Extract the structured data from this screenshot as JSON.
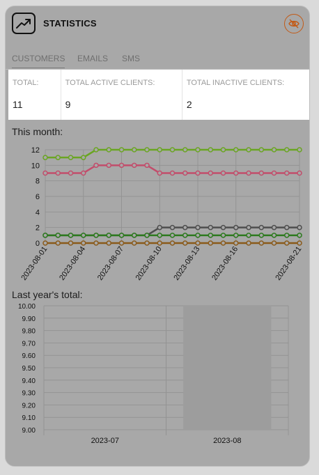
{
  "header": {
    "title": "STATISTICS",
    "app_icon": "trend-up-icon",
    "hide_icon": "eye-off-icon"
  },
  "tabs": [
    {
      "label": "CUSTOMERS",
      "active": true
    },
    {
      "label": "EMAILS",
      "active": false
    },
    {
      "label": "SMS",
      "active": false
    }
  ],
  "summary": [
    {
      "label": "TOTAL:",
      "value": "11"
    },
    {
      "label": "TOTAL ACTIVE CLIENTS:",
      "value": "9"
    },
    {
      "label": "TOTAL INACTIVE CLIENTS:",
      "value": "2"
    }
  ],
  "month_label": "This month:",
  "year_label": "Last year's total:",
  "colors": {
    "accent": "#c25a16",
    "card_bg": "#a8a8a8"
  },
  "chart_data": [
    {
      "type": "line",
      "x": [
        "2023-08-01",
        "2023-08-02",
        "2023-08-03",
        "2023-08-04",
        "2023-08-05",
        "2023-08-06",
        "2023-08-07",
        "2023-08-08",
        "2023-08-09",
        "2023-08-10",
        "2023-08-11",
        "2023-08-12",
        "2023-08-13",
        "2023-08-14",
        "2023-08-15",
        "2023-08-16",
        "2023-08-17",
        "2023-08-18",
        "2023-08-19",
        "2023-08-20",
        "2023-08-21"
      ],
      "x_tick_labels": [
        "2023-08-01",
        "2023-08-04",
        "2023-08-07",
        "2023-08-10",
        "2023-08-13",
        "2023-08-16",
        "2023-08-21"
      ],
      "ylim": [
        0,
        12
      ],
      "y_ticks": [
        "0",
        "2",
        "4",
        "6",
        "8",
        "10",
        "12"
      ],
      "grid": true,
      "series": [
        {
          "color": "#6aa522",
          "values": [
            11,
            11,
            11,
            11,
            12,
            12,
            12,
            12,
            12,
            12,
            12,
            12,
            12,
            12,
            12,
            12,
            12,
            12,
            12,
            12,
            12
          ]
        },
        {
          "color": "#c24d6b",
          "values": [
            9,
            9,
            9,
            9,
            10,
            10,
            10,
            10,
            10,
            9,
            9,
            9,
            9,
            9,
            9,
            9,
            9,
            9,
            9,
            9,
            9
          ]
        },
        {
          "color": "#4e4e4e",
          "values": [
            1,
            1,
            1,
            1,
            1,
            1,
            1,
            1,
            1,
            2,
            2,
            2,
            2,
            2,
            2,
            2,
            2,
            2,
            2,
            2,
            2
          ]
        },
        {
          "color": "#2d7a1f",
          "values": [
            1,
            1,
            1,
            1,
            1,
            1,
            1,
            1,
            1,
            1,
            1,
            1,
            1,
            1,
            1,
            1,
            1,
            1,
            1,
            1,
            1
          ]
        },
        {
          "color": "#8a5a1a",
          "values": [
            0,
            0,
            0,
            0,
            0,
            0,
            0,
            0,
            0,
            0,
            0,
            0,
            0,
            0,
            0,
            0,
            0,
            0,
            0,
            0,
            0
          ]
        }
      ]
    },
    {
      "type": "bar",
      "categories": [
        "2023-07",
        "2023-08"
      ],
      "values": [
        null,
        10
      ],
      "bar_color": "#9d9d9d",
      "ylim": [
        9.0,
        10.0
      ],
      "y_ticks": [
        "9.00",
        "9.10",
        "9.20",
        "9.30",
        "9.40",
        "9.50",
        "9.60",
        "9.70",
        "9.80",
        "9.90",
        "10.00"
      ],
      "grid": true
    }
  ]
}
